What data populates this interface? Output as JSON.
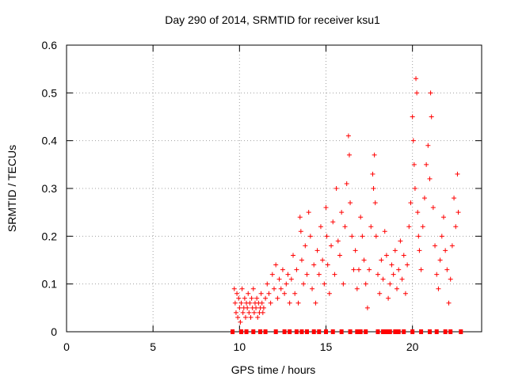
{
  "chart_data": {
    "type": "scatter",
    "title": "Day 290 of 2014, SRMTID for receiver ksu1",
    "xlabel": "GPS time / hours",
    "ylabel": "SRMTID / TECUs",
    "xlim": [
      0,
      24
    ],
    "ylim": [
      0,
      0.6
    ],
    "xticks": [
      "0",
      "5",
      "10",
      "15",
      "20"
    ],
    "xtick_values": [
      0,
      5,
      10,
      15,
      20
    ],
    "yticks": [
      "0",
      "0.1",
      "0.2",
      "0.3",
      "0.4",
      "0.5",
      "0.6"
    ],
    "ytick_values": [
      0,
      0.1,
      0.2,
      0.3,
      0.4,
      0.5,
      0.6
    ],
    "grid": true,
    "marker": "+",
    "color": "#ff0000",
    "series": [
      {
        "name": "SRMTID",
        "points": [
          [
            9.7,
            0.09
          ],
          [
            9.75,
            0.06
          ],
          [
            9.8,
            0.04
          ],
          [
            9.85,
            0.08
          ],
          [
            9.9,
            0.03
          ],
          [
            9.95,
            0.07
          ],
          [
            10.0,
            0.05
          ],
          [
            10.05,
            0.02
          ],
          [
            10.1,
            0.06
          ],
          [
            10.15,
            0.09
          ],
          [
            10.2,
            0.04
          ],
          [
            10.25,
            0.05
          ],
          [
            10.3,
            0.07
          ],
          [
            10.35,
            0.03
          ],
          [
            10.4,
            0.06
          ],
          [
            10.45,
            0.05
          ],
          [
            10.5,
            0.08
          ],
          [
            10.55,
            0.04
          ],
          [
            10.6,
            0.06
          ],
          [
            10.65,
            0.03
          ],
          [
            10.7,
            0.07
          ],
          [
            10.75,
            0.05
          ],
          [
            10.8,
            0.09
          ],
          [
            10.85,
            0.04
          ],
          [
            10.9,
            0.06
          ],
          [
            10.95,
            0.05
          ],
          [
            11.0,
            0.07
          ],
          [
            11.05,
            0.03
          ],
          [
            11.1,
            0.06
          ],
          [
            11.15,
            0.04
          ],
          [
            11.2,
            0.05
          ],
          [
            11.25,
            0.08
          ],
          [
            11.3,
            0.06
          ],
          [
            11.35,
            0.04
          ],
          [
            11.4,
            0.05
          ],
          [
            11.5,
            0.07
          ],
          [
            11.6,
            0.1
          ],
          [
            11.7,
            0.08
          ],
          [
            11.8,
            0.06
          ],
          [
            11.9,
            0.12
          ],
          [
            12.0,
            0.09
          ],
          [
            12.1,
            0.14
          ],
          [
            12.2,
            0.07
          ],
          [
            12.3,
            0.11
          ],
          [
            12.4,
            0.09
          ],
          [
            12.5,
            0.13
          ],
          [
            12.6,
            0.08
          ],
          [
            12.7,
            0.1
          ],
          [
            12.8,
            0.12
          ],
          [
            12.9,
            0.06
          ],
          [
            13.0,
            0.11
          ],
          [
            13.1,
            0.16
          ],
          [
            13.2,
            0.08
          ],
          [
            13.3,
            0.13
          ],
          [
            13.4,
            0.06
          ],
          [
            13.5,
            0.24
          ],
          [
            13.55,
            0.21
          ],
          [
            13.6,
            0.15
          ],
          [
            13.7,
            0.1
          ],
          [
            13.8,
            0.18
          ],
          [
            13.9,
            0.12
          ],
          [
            14.0,
            0.25
          ],
          [
            14.1,
            0.2
          ],
          [
            14.2,
            0.09
          ],
          [
            14.3,
            0.14
          ],
          [
            14.4,
            0.06
          ],
          [
            14.5,
            0.17
          ],
          [
            14.6,
            0.12
          ],
          [
            14.7,
            0.22
          ],
          [
            14.8,
            0.15
          ],
          [
            14.9,
            0.1
          ],
          [
            15.0,
            0.26
          ],
          [
            15.05,
            0.2
          ],
          [
            15.1,
            0.14
          ],
          [
            15.2,
            0.08
          ],
          [
            15.3,
            0.18
          ],
          [
            15.4,
            0.23
          ],
          [
            15.5,
            0.12
          ],
          [
            15.6,
            0.3
          ],
          [
            15.7,
            0.19
          ],
          [
            15.8,
            0.16
          ],
          [
            15.9,
            0.25
          ],
          [
            16.0,
            0.1
          ],
          [
            16.1,
            0.22
          ],
          [
            16.2,
            0.31
          ],
          [
            16.3,
            0.41
          ],
          [
            16.35,
            0.37
          ],
          [
            16.4,
            0.27
          ],
          [
            16.5,
            0.2
          ],
          [
            16.6,
            0.13
          ],
          [
            16.7,
            0.17
          ],
          [
            16.8,
            0.09
          ],
          [
            16.9,
            0.13
          ],
          [
            17.0,
            0.24
          ],
          [
            17.1,
            0.2
          ],
          [
            17.2,
            0.15
          ],
          [
            17.3,
            0.1
          ],
          [
            17.4,
            0.05
          ],
          [
            17.5,
            0.13
          ],
          [
            17.6,
            0.22
          ],
          [
            17.7,
            0.33
          ],
          [
            17.75,
            0.3
          ],
          [
            17.8,
            0.37
          ],
          [
            17.85,
            0.27
          ],
          [
            17.9,
            0.2
          ],
          [
            18.0,
            0.12
          ],
          [
            18.1,
            0.08
          ],
          [
            18.2,
            0.15
          ],
          [
            18.3,
            0.11
          ],
          [
            18.4,
            0.21
          ],
          [
            18.5,
            0.16
          ],
          [
            18.6,
            0.07
          ],
          [
            18.7,
            0.1
          ],
          [
            18.8,
            0.14
          ],
          [
            18.9,
            0.12
          ],
          [
            19.0,
            0.17
          ],
          [
            19.1,
            0.09
          ],
          [
            19.2,
            0.13
          ],
          [
            19.3,
            0.19
          ],
          [
            19.4,
            0.11
          ],
          [
            19.5,
            0.16
          ],
          [
            19.6,
            0.08
          ],
          [
            19.7,
            0.14
          ],
          [
            19.8,
            0.22
          ],
          [
            19.9,
            0.27
          ],
          [
            20.0,
            0.45
          ],
          [
            20.05,
            0.4
          ],
          [
            20.1,
            0.35
          ],
          [
            20.15,
            0.3
          ],
          [
            20.2,
            0.53
          ],
          [
            20.25,
            0.5
          ],
          [
            20.3,
            0.25
          ],
          [
            20.35,
            0.2
          ],
          [
            20.4,
            0.17
          ],
          [
            20.5,
            0.13
          ],
          [
            20.6,
            0.22
          ],
          [
            20.7,
            0.28
          ],
          [
            20.8,
            0.35
          ],
          [
            20.9,
            0.39
          ],
          [
            21.0,
            0.32
          ],
          [
            21.05,
            0.5
          ],
          [
            21.1,
            0.45
          ],
          [
            21.2,
            0.26
          ],
          [
            21.3,
            0.18
          ],
          [
            21.4,
            0.12
          ],
          [
            21.5,
            0.09
          ],
          [
            21.6,
            0.15
          ],
          [
            21.7,
            0.2
          ],
          [
            21.8,
            0.24
          ],
          [
            21.9,
            0.17
          ],
          [
            22.0,
            0.13
          ],
          [
            22.1,
            0.06
          ],
          [
            22.2,
            0.11
          ],
          [
            22.3,
            0.18
          ],
          [
            22.4,
            0.28
          ],
          [
            22.5,
            0.22
          ],
          [
            22.6,
            0.33
          ],
          [
            22.65,
            0.25
          ]
        ]
      }
    ],
    "baseline_markers": [
      9.6,
      10.1,
      10.4,
      10.8,
      11.2,
      11.5,
      12.1,
      12.6,
      12.9,
      13.3,
      13.6,
      13.9,
      14.3,
      14.6,
      15.0,
      15.4,
      15.9,
      16.4,
      16.8,
      17.0,
      17.3,
      18.0,
      18.3,
      18.5,
      18.7,
      19.0,
      19.2,
      19.5,
      20.0,
      20.5,
      21.0,
      21.4,
      21.9,
      22.2,
      22.8
    ]
  }
}
